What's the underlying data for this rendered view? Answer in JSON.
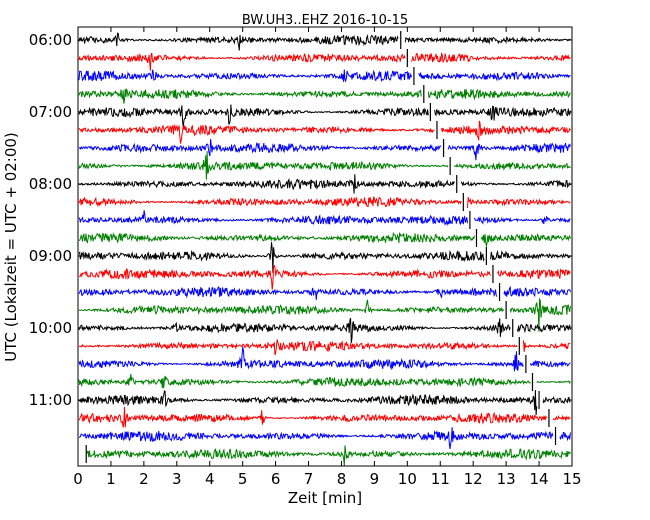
{
  "chart_data": {
    "type": "line",
    "title": "BW.UH3..EHZ 2016-10-15",
    "xlabel": "Zeit  [min]",
    "ylabel": "UTC (Lokalzeit = UTC + 02:00)",
    "xlim": [
      0,
      15
    ],
    "x_ticks": [
      "0",
      "1",
      "2",
      "3",
      "4",
      "5",
      "6",
      "7",
      "8",
      "9",
      "10",
      "11",
      "12",
      "13",
      "14",
      "15"
    ],
    "y_ticks": [
      {
        "label": "06:00",
        "row": 0
      },
      {
        "label": "07:00",
        "row": 4
      },
      {
        "label": "08:00",
        "row": 8
      },
      {
        "label": "09:00",
        "row": 12
      },
      {
        "label": "10:00",
        "row": 16
      },
      {
        "label": "11:00",
        "row": 20
      }
    ],
    "row_minutes": 15,
    "start_time": "06:00",
    "trace_count": 24,
    "colors": [
      "#000000",
      "#ff0000",
      "#0000ff",
      "#008000"
    ],
    "grid": false,
    "legend": "none",
    "gaps": [
      {
        "row": 0,
        "minute": 9.8
      },
      {
        "row": 1,
        "minute": 10.0
      },
      {
        "row": 2,
        "minute": 10.2
      },
      {
        "row": 3,
        "minute": 10.5
      },
      {
        "row": 4,
        "minute": 10.7
      },
      {
        "row": 5,
        "minute": 10.9
      },
      {
        "row": 6,
        "minute": 11.1
      },
      {
        "row": 7,
        "minute": 11.3
      },
      {
        "row": 8,
        "minute": 11.5
      },
      {
        "row": 9,
        "minute": 11.7
      },
      {
        "row": 10,
        "minute": 11.9
      },
      {
        "row": 11,
        "minute": 12.1
      },
      {
        "row": 12,
        "minute": 12.4
      },
      {
        "row": 13,
        "minute": 12.6
      },
      {
        "row": 14,
        "minute": 12.8
      },
      {
        "row": 15,
        "minute": 13.0
      },
      {
        "row": 16,
        "minute": 13.2
      },
      {
        "row": 17,
        "minute": 13.4
      },
      {
        "row": 18,
        "minute": 13.6
      },
      {
        "row": 19,
        "minute": 13.8
      },
      {
        "row": 20,
        "minute": 14.0
      },
      {
        "row": 21,
        "minute": 14.3
      },
      {
        "row": 22,
        "minute": 14.5
      },
      {
        "row": 23,
        "minute": 0.25
      }
    ],
    "events": [
      {
        "row": 0,
        "minute": 1.2,
        "amp": 1.0
      },
      {
        "row": 0,
        "minute": 4.9,
        "amp": 0.9
      },
      {
        "row": 1,
        "minute": 2.2,
        "amp": 1.0
      },
      {
        "row": 2,
        "minute": 2.3,
        "amp": 0.9
      },
      {
        "row": 2,
        "minute": 8.1,
        "amp": 1.1
      },
      {
        "row": 3,
        "minute": 1.4,
        "amp": 0.9
      },
      {
        "row": 4,
        "minute": 3.2,
        "amp": 1.4
      },
      {
        "row": 4,
        "minute": 4.6,
        "amp": 1.2
      },
      {
        "row": 4,
        "minute": 12.6,
        "amp": 1.4
      },
      {
        "row": 5,
        "minute": 3.1,
        "amp": 1.1
      },
      {
        "row": 5,
        "minute": 12.2,
        "amp": 1.2
      },
      {
        "row": 6,
        "minute": 4.0,
        "amp": 1.0
      },
      {
        "row": 6,
        "minute": 12.1,
        "amp": 1.5
      },
      {
        "row": 7,
        "minute": 3.9,
        "amp": 1.6
      },
      {
        "row": 8,
        "minute": 8.4,
        "amp": 1.0
      },
      {
        "row": 9,
        "minute": 11.8,
        "amp": 1.1
      },
      {
        "row": 10,
        "minute": 2.0,
        "amp": 1.0
      },
      {
        "row": 10,
        "minute": 14.2,
        "amp": 1.1
      },
      {
        "row": 11,
        "minute": 12.4,
        "amp": 1.0
      },
      {
        "row": 12,
        "minute": 5.9,
        "amp": 2.4
      },
      {
        "row": 13,
        "minute": 5.9,
        "amp": 2.2
      },
      {
        "row": 14,
        "minute": 7.2,
        "amp": 1.3
      },
      {
        "row": 14,
        "minute": 11.0,
        "amp": 1.0
      },
      {
        "row": 15,
        "minute": 8.8,
        "amp": 1.4
      },
      {
        "row": 15,
        "minute": 14.0,
        "amp": 2.0
      },
      {
        "row": 16,
        "minute": 3.0,
        "amp": 1.0
      },
      {
        "row": 16,
        "minute": 8.3,
        "amp": 1.5
      },
      {
        "row": 16,
        "minute": 12.8,
        "amp": 1.4
      },
      {
        "row": 17,
        "minute": 6.0,
        "amp": 1.1
      },
      {
        "row": 17,
        "minute": 13.5,
        "amp": 1.5
      },
      {
        "row": 18,
        "minute": 5.0,
        "amp": 1.6
      },
      {
        "row": 18,
        "minute": 13.3,
        "amp": 1.5
      },
      {
        "row": 19,
        "minute": 1.6,
        "amp": 1.6
      },
      {
        "row": 19,
        "minute": 2.6,
        "amp": 1.0
      },
      {
        "row": 20,
        "minute": 2.6,
        "amp": 1.5
      },
      {
        "row": 20,
        "minute": 13.9,
        "amp": 1.6
      },
      {
        "row": 21,
        "minute": 1.4,
        "amp": 1.2
      },
      {
        "row": 21,
        "minute": 5.6,
        "amp": 1.0
      },
      {
        "row": 22,
        "minute": 11.3,
        "amp": 1.6
      },
      {
        "row": 23,
        "minute": 8.1,
        "amp": 1.7
      }
    ]
  }
}
